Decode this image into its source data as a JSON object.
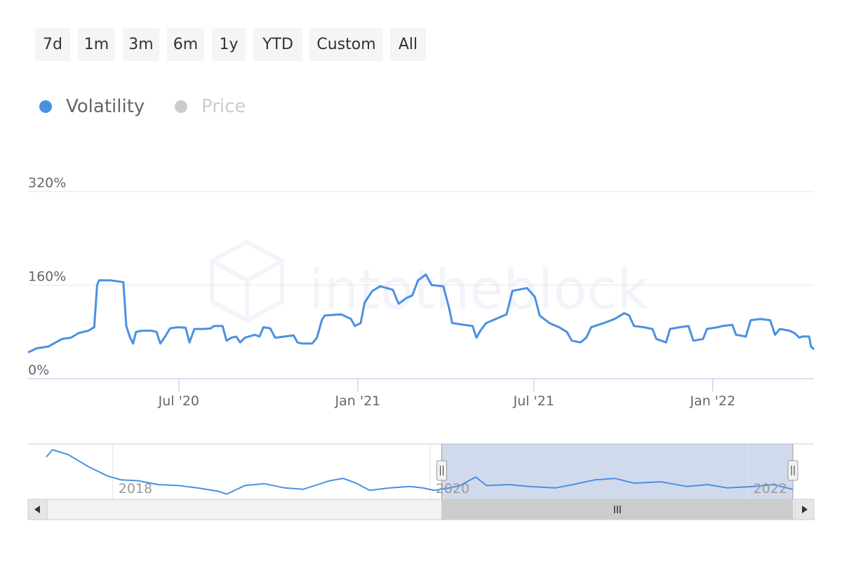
{
  "range_selector": {
    "buttons": [
      "7d",
      "1m",
      "3m",
      "6m",
      "1y",
      "YTD",
      "Custom",
      "All"
    ]
  },
  "legend": [
    {
      "name": "Volatility",
      "color": "#4a90e2",
      "active": true
    },
    {
      "name": "Price",
      "color": "#cccccc",
      "active": false
    }
  ],
  "watermark": "intotheblock",
  "chart_data": {
    "type": "line",
    "title": "",
    "grid": true,
    "legend_position": "top-left",
    "y_axis": {
      "range": [
        0,
        320
      ],
      "ticks": [
        0,
        160,
        320
      ],
      "tick_labels": [
        "0%",
        "160%",
        "320%"
      ],
      "unit": "%"
    },
    "x_axis": {
      "range": [
        "2020-01-28",
        "2022-04-15"
      ],
      "ticks": [
        "2020-07-01",
        "2021-01-01",
        "2021-07-01",
        "2022-01-01"
      ],
      "tick_labels": [
        "Jul '20",
        "Jan '21",
        "Jul '21",
        "Jan '22"
      ]
    },
    "series": [
      {
        "name": "Volatility",
        "color": "#4a90e2",
        "points": [
          [
            "2020-01-28",
            45
          ],
          [
            "2020-02-06",
            52
          ],
          [
            "2020-02-18",
            55
          ],
          [
            "2020-03-03",
            68
          ],
          [
            "2020-03-12",
            70
          ],
          [
            "2020-03-20",
            78
          ],
          [
            "2020-03-30",
            82
          ],
          [
            "2020-04-05",
            88
          ],
          [
            "2020-04-08",
            160
          ],
          [
            "2020-04-10",
            168
          ],
          [
            "2020-04-22",
            168
          ],
          [
            "2020-05-05",
            165
          ],
          [
            "2020-05-08",
            90
          ],
          [
            "2020-05-12",
            70
          ],
          [
            "2020-05-15",
            60
          ],
          [
            "2020-05-18",
            80
          ],
          [
            "2020-05-24",
            82
          ],
          [
            "2020-06-03",
            82
          ],
          [
            "2020-06-08",
            80
          ],
          [
            "2020-06-12",
            60
          ],
          [
            "2020-06-17",
            72
          ],
          [
            "2020-06-22",
            86
          ],
          [
            "2020-06-30",
            88
          ],
          [
            "2020-07-08",
            87
          ],
          [
            "2020-07-12",
            62
          ],
          [
            "2020-07-17",
            85
          ],
          [
            "2020-07-27",
            85
          ],
          [
            "2020-08-03",
            86
          ],
          [
            "2020-08-06",
            90
          ],
          [
            "2020-08-15",
            90
          ],
          [
            "2020-08-19",
            65
          ],
          [
            "2020-08-24",
            70
          ],
          [
            "2020-08-29",
            72
          ],
          [
            "2020-09-02",
            62
          ],
          [
            "2020-09-07",
            70
          ],
          [
            "2020-09-17",
            75
          ],
          [
            "2020-09-22",
            72
          ],
          [
            "2020-09-26",
            88
          ],
          [
            "2020-10-03",
            86
          ],
          [
            "2020-10-08",
            70
          ],
          [
            "2020-10-18",
            72
          ],
          [
            "2020-10-27",
            74
          ],
          [
            "2020-10-31",
            62
          ],
          [
            "2020-11-05",
            60
          ],
          [
            "2020-11-15",
            60
          ],
          [
            "2020-11-20",
            70
          ],
          [
            "2020-11-25",
            100
          ],
          [
            "2020-11-28",
            108
          ],
          [
            "2020-12-15",
            110
          ],
          [
            "2020-12-25",
            102
          ],
          [
            "2020-12-29",
            90
          ],
          [
            "2021-01-04",
            95
          ],
          [
            "2021-01-08",
            130
          ],
          [
            "2021-01-16",
            150
          ],
          [
            "2021-01-24",
            158
          ],
          [
            "2021-02-06",
            152
          ],
          [
            "2021-02-12",
            128
          ],
          [
            "2021-02-20",
            138
          ],
          [
            "2021-02-26",
            142
          ],
          [
            "2021-03-04",
            168
          ],
          [
            "2021-03-12",
            178
          ],
          [
            "2021-03-18",
            160
          ],
          [
            "2021-03-30",
            158
          ],
          [
            "2021-04-05",
            120
          ],
          [
            "2021-04-08",
            95
          ],
          [
            "2021-04-20",
            92
          ],
          [
            "2021-04-29",
            90
          ],
          [
            "2021-05-03",
            70
          ],
          [
            "2021-05-07",
            82
          ],
          [
            "2021-05-13",
            95
          ],
          [
            "2021-05-27",
            105
          ],
          [
            "2021-06-03",
            110
          ],
          [
            "2021-06-09",
            150
          ],
          [
            "2021-06-24",
            155
          ],
          [
            "2021-07-02",
            140
          ],
          [
            "2021-07-07",
            108
          ],
          [
            "2021-07-17",
            95
          ],
          [
            "2021-07-27",
            88
          ],
          [
            "2021-08-04",
            80
          ],
          [
            "2021-08-09",
            65
          ],
          [
            "2021-08-18",
            62
          ],
          [
            "2021-08-24",
            70
          ],
          [
            "2021-08-29",
            88
          ],
          [
            "2021-09-11",
            95
          ],
          [
            "2021-09-22",
            102
          ],
          [
            "2021-10-02",
            112
          ],
          [
            "2021-10-07",
            108
          ],
          [
            "2021-10-12",
            90
          ],
          [
            "2021-10-22",
            88
          ],
          [
            "2021-10-31",
            85
          ],
          [
            "2021-11-04",
            68
          ],
          [
            "2021-11-14",
            62
          ],
          [
            "2021-11-18",
            85
          ],
          [
            "2021-11-28",
            88
          ],
          [
            "2021-12-07",
            90
          ],
          [
            "2021-12-12",
            65
          ],
          [
            "2021-12-22",
            68
          ],
          [
            "2021-12-26",
            85
          ],
          [
            "2022-01-06",
            88
          ],
          [
            "2022-01-11",
            90
          ],
          [
            "2022-01-21",
            92
          ],
          [
            "2022-01-25",
            75
          ],
          [
            "2022-02-04",
            72
          ],
          [
            "2022-02-09",
            100
          ],
          [
            "2022-02-19",
            102
          ],
          [
            "2022-03-01",
            100
          ],
          [
            "2022-03-06",
            75
          ],
          [
            "2022-03-11",
            85
          ],
          [
            "2022-03-21",
            82
          ],
          [
            "2022-03-26",
            78
          ],
          [
            "2022-03-31",
            70
          ],
          [
            "2022-04-03",
            72
          ],
          [
            "2022-04-10",
            72
          ],
          [
            "2022-04-12",
            55
          ],
          [
            "2022-04-15",
            50
          ]
        ]
      }
    ],
    "navigator": {
      "range": [
        "2017-08-01",
        "2022-04-15"
      ],
      "tick_labels": [
        "2018",
        "2020",
        "2022"
      ],
      "selected_range": [
        "2020-01-28",
        "2022-04-15"
      ],
      "series": [
        [
          "2017-08-01",
          80
        ],
        [
          "2017-08-15",
          95
        ],
        [
          "2017-09-20",
          85
        ],
        [
          "2017-11-05",
          60
        ],
        [
          "2017-12-20",
          40
        ],
        [
          "2018-01-20",
          32
        ],
        [
          "2018-03-01",
          30
        ],
        [
          "2018-04-15",
          22
        ],
        [
          "2018-06-01",
          20
        ],
        [
          "2018-07-15",
          15
        ],
        [
          "2018-09-01",
          8
        ],
        [
          "2018-09-20",
          2
        ],
        [
          "2018-11-01",
          20
        ],
        [
          "2018-12-15",
          24
        ],
        [
          "2019-02-01",
          15
        ],
        [
          "2019-03-15",
          12
        ],
        [
          "2019-05-15",
          30
        ],
        [
          "2019-06-15",
          35
        ],
        [
          "2019-07-15",
          25
        ],
        [
          "2019-08-15",
          10
        ],
        [
          "2019-10-01",
          15
        ],
        [
          "2019-11-15",
          18
        ],
        [
          "2019-12-15",
          15
        ],
        [
          "2020-01-10",
          10
        ],
        [
          "2020-02-15",
          15
        ],
        [
          "2020-03-10",
          20
        ],
        [
          "2020-04-15",
          38
        ],
        [
          "2020-05-10",
          20
        ],
        [
          "2020-07-01",
          22
        ],
        [
          "2020-08-15",
          18
        ],
        [
          "2020-10-15",
          15
        ],
        [
          "2020-11-25",
          22
        ],
        [
          "2021-01-15",
          32
        ],
        [
          "2021-03-01",
          35
        ],
        [
          "2021-04-15",
          25
        ],
        [
          "2021-06-15",
          28
        ],
        [
          "2021-08-15",
          18
        ],
        [
          "2021-10-01",
          22
        ],
        [
          "2021-11-15",
          15
        ],
        [
          "2022-01-15",
          18
        ],
        [
          "2022-03-01",
          22
        ],
        [
          "2022-04-15",
          12
        ]
      ]
    }
  }
}
